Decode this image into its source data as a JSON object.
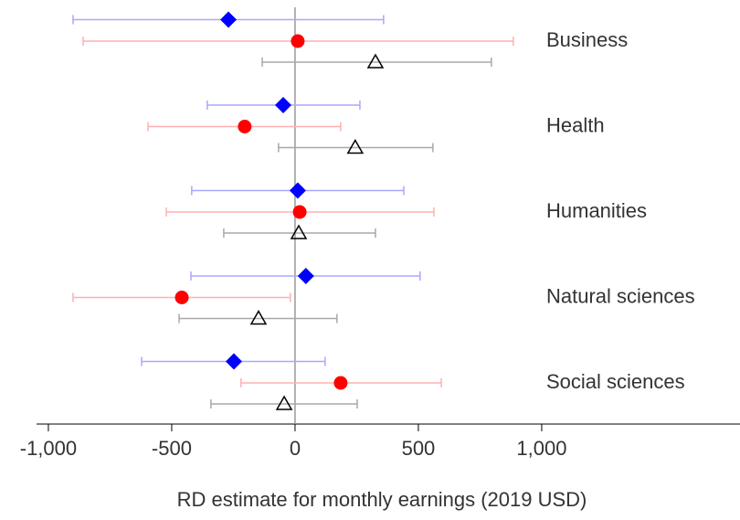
{
  "chart_data": {
    "type": "dot-whisker",
    "x_label": "RD estimate for monthly earnings (2019 USD)",
    "categories": [
      "Business",
      "Health",
      "Humanities",
      "Natural sciences",
      "Social sciences"
    ],
    "series": [
      {
        "marker": "diamond",
        "color": "#0000ff",
        "error_color": "#a8a8ff",
        "values": [
          -270,
          -48,
          11,
          44,
          -248
        ],
        "lower": [
          -900,
          -356,
          -419,
          -422,
          -622
        ],
        "upper": [
          359,
          263,
          441,
          507,
          122
        ]
      },
      {
        "marker": "circle",
        "color": "#ff0000",
        "error_color": "#ffb0b0",
        "values": [
          11,
          -204,
          19,
          -459,
          185
        ],
        "lower": [
          -859,
          -596,
          -522,
          -900,
          -219
        ],
        "upper": [
          885,
          185,
          563,
          -19,
          593
        ]
      },
      {
        "marker": "triangle",
        "color": "#000000",
        "error_color": "#a8a8a8",
        "values": [
          326,
          244,
          15,
          -148,
          -44
        ],
        "lower": [
          -133,
          -67,
          -289,
          -470,
          -341
        ],
        "upper": [
          796,
          559,
          326,
          170,
          252
        ]
      }
    ],
    "xlim": [
      -1048,
      1804
    ],
    "xticks": [
      {
        "value": -1000,
        "label": "-1,000"
      },
      -500,
      0,
      500,
      {
        "value": 1000,
        "label": "1,000"
      }
    ],
    "zero_line": true
  }
}
